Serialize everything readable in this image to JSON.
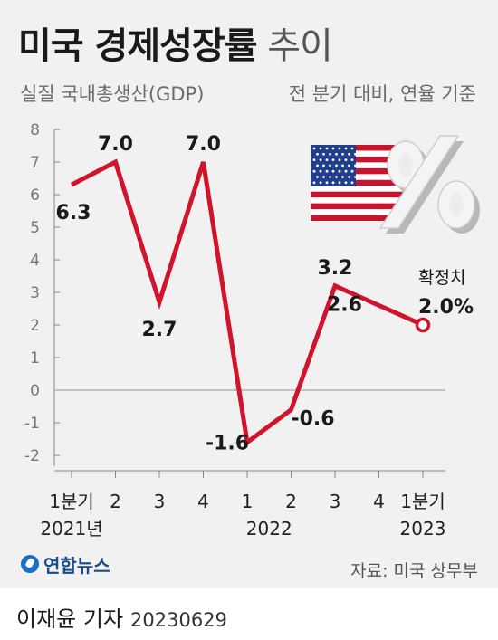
{
  "header": {
    "title_main": "미국 경제성장률",
    "title_suffix": "추이",
    "subtitle_left": "실질 국내총생산(GDP)",
    "subtitle_right": "전 분기 대비, 연율 기준"
  },
  "chart_data": {
    "type": "line",
    "x_ticks": [
      "1분기",
      "2",
      "3",
      "4",
      "1",
      "2",
      "3",
      "4",
      "1분기"
    ],
    "year_labels": [
      {
        "text": "2021년",
        "index": 0
      },
      {
        "text": "2022",
        "index": 4.5
      },
      {
        "text": "2023",
        "index": 8
      }
    ],
    "y_ticks": [
      8,
      7,
      6,
      5,
      4,
      3,
      2,
      1,
      0,
      -1,
      -2
    ],
    "ylim": [
      -2,
      8
    ],
    "grid": false,
    "series": [
      {
        "values": [
          6.3,
          7.0,
          2.7,
          7.0,
          -1.6,
          -0.6,
          3.2,
          2.6,
          2.0
        ],
        "labels": [
          "6.3",
          "7.0",
          "2.7",
          "7.0",
          "-1.6",
          "-0.6",
          "3.2",
          "2.6",
          "2.0%"
        ],
        "color": "#d0142c"
      }
    ],
    "annotations": [
      {
        "text": "확정치",
        "index": 8
      }
    ]
  },
  "icons": [
    "us-flag-icon",
    "percent-icon"
  ],
  "footer": {
    "logo_text": "연합뉴스",
    "source": "자료: 미국 상무부",
    "credit": "이재윤 기자",
    "date": "20230629"
  },
  "colors": {
    "line": "#d0142c",
    "flag_blue": "#1f3f8c",
    "flag_red": "#c8152d"
  }
}
